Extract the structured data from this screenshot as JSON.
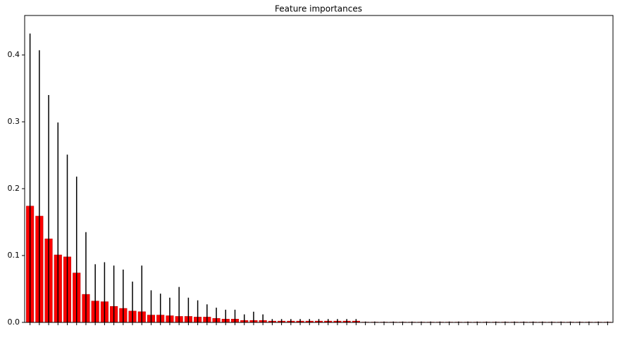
{
  "chart_data": {
    "type": "bar",
    "title": "Feature importances",
    "categories": [
      null,
      null,
      null,
      null,
      null,
      null,
      null,
      null,
      null,
      null,
      null,
      null,
      null,
      null,
      null,
      null,
      null,
      null,
      null,
      null,
      null,
      null,
      null,
      null,
      null,
      null,
      null,
      null,
      null,
      null,
      null,
      null,
      null,
      null,
      null,
      null,
      null,
      null,
      null,
      null,
      null,
      null,
      null,
      null,
      null,
      null,
      null,
      null,
      null,
      null,
      null,
      null,
      null,
      null,
      null,
      null,
      null,
      null,
      null,
      null,
      null,
      null,
      null
    ],
    "series": [
      {
        "color": "#ff0000",
        "values": [
          0.174,
          0.159,
          0.125,
          0.101,
          0.098,
          0.074,
          0.042,
          0.032,
          0.031,
          0.024,
          0.021,
          0.017,
          0.016,
          0.011,
          0.011,
          0.01,
          0.009,
          0.009,
          0.008,
          0.008,
          0.006,
          0.005,
          0.005,
          0.003,
          0.003,
          0.003,
          0.002,
          0.002,
          0.002,
          0.002,
          0.002,
          0.002,
          0.002,
          0.002,
          0.002,
          0.002,
          0.0005,
          0.0005,
          0.0005,
          0.0005,
          0.0005,
          0.0005,
          0.0005,
          0.0005,
          0.0005,
          0.0005,
          0.0005,
          0.0005,
          0.0005,
          0.0005,
          0.0005,
          0.0005,
          0.0005,
          0.0005,
          0.0005,
          0.0005,
          0.0005,
          0.0005,
          0.0005,
          0.0005,
          0.0005,
          0.0005,
          0.0005
        ],
        "errors": [
          0.258,
          0.248,
          0.215,
          0.198,
          0.153,
          0.144,
          0.093,
          0.055,
          0.059,
          0.061,
          0.058,
          0.044,
          0.069,
          0.037,
          0.032,
          0.027,
          0.044,
          0.028,
          0.025,
          0.019,
          0.016,
          0.014,
          0.014,
          0.009,
          0.013,
          0.009,
          0.003,
          0.003,
          0.003,
          0.003,
          0.003,
          0.003,
          0.003,
          0.003,
          0.003,
          0.003,
          0.0008,
          0.0008,
          0.0008,
          0.0008,
          0.0008,
          0.0008,
          0.0008,
          0.0008,
          0.0008,
          0.0008,
          0.0008,
          0.0008,
          0.0008,
          0.0008,
          0.0008,
          0.0008,
          0.0008,
          0.0008,
          0.0008,
          0.0008,
          0.0008,
          0.0008,
          0.0008,
          0.0008,
          0.0008,
          0.0008,
          0.0008
        ]
      }
    ],
    "ylim": [
      0,
      0.459
    ],
    "yticks": [
      {
        "value": 0,
        "label": "0.0"
      },
      0.1,
      0.2,
      0.3,
      0.4
    ]
  }
}
